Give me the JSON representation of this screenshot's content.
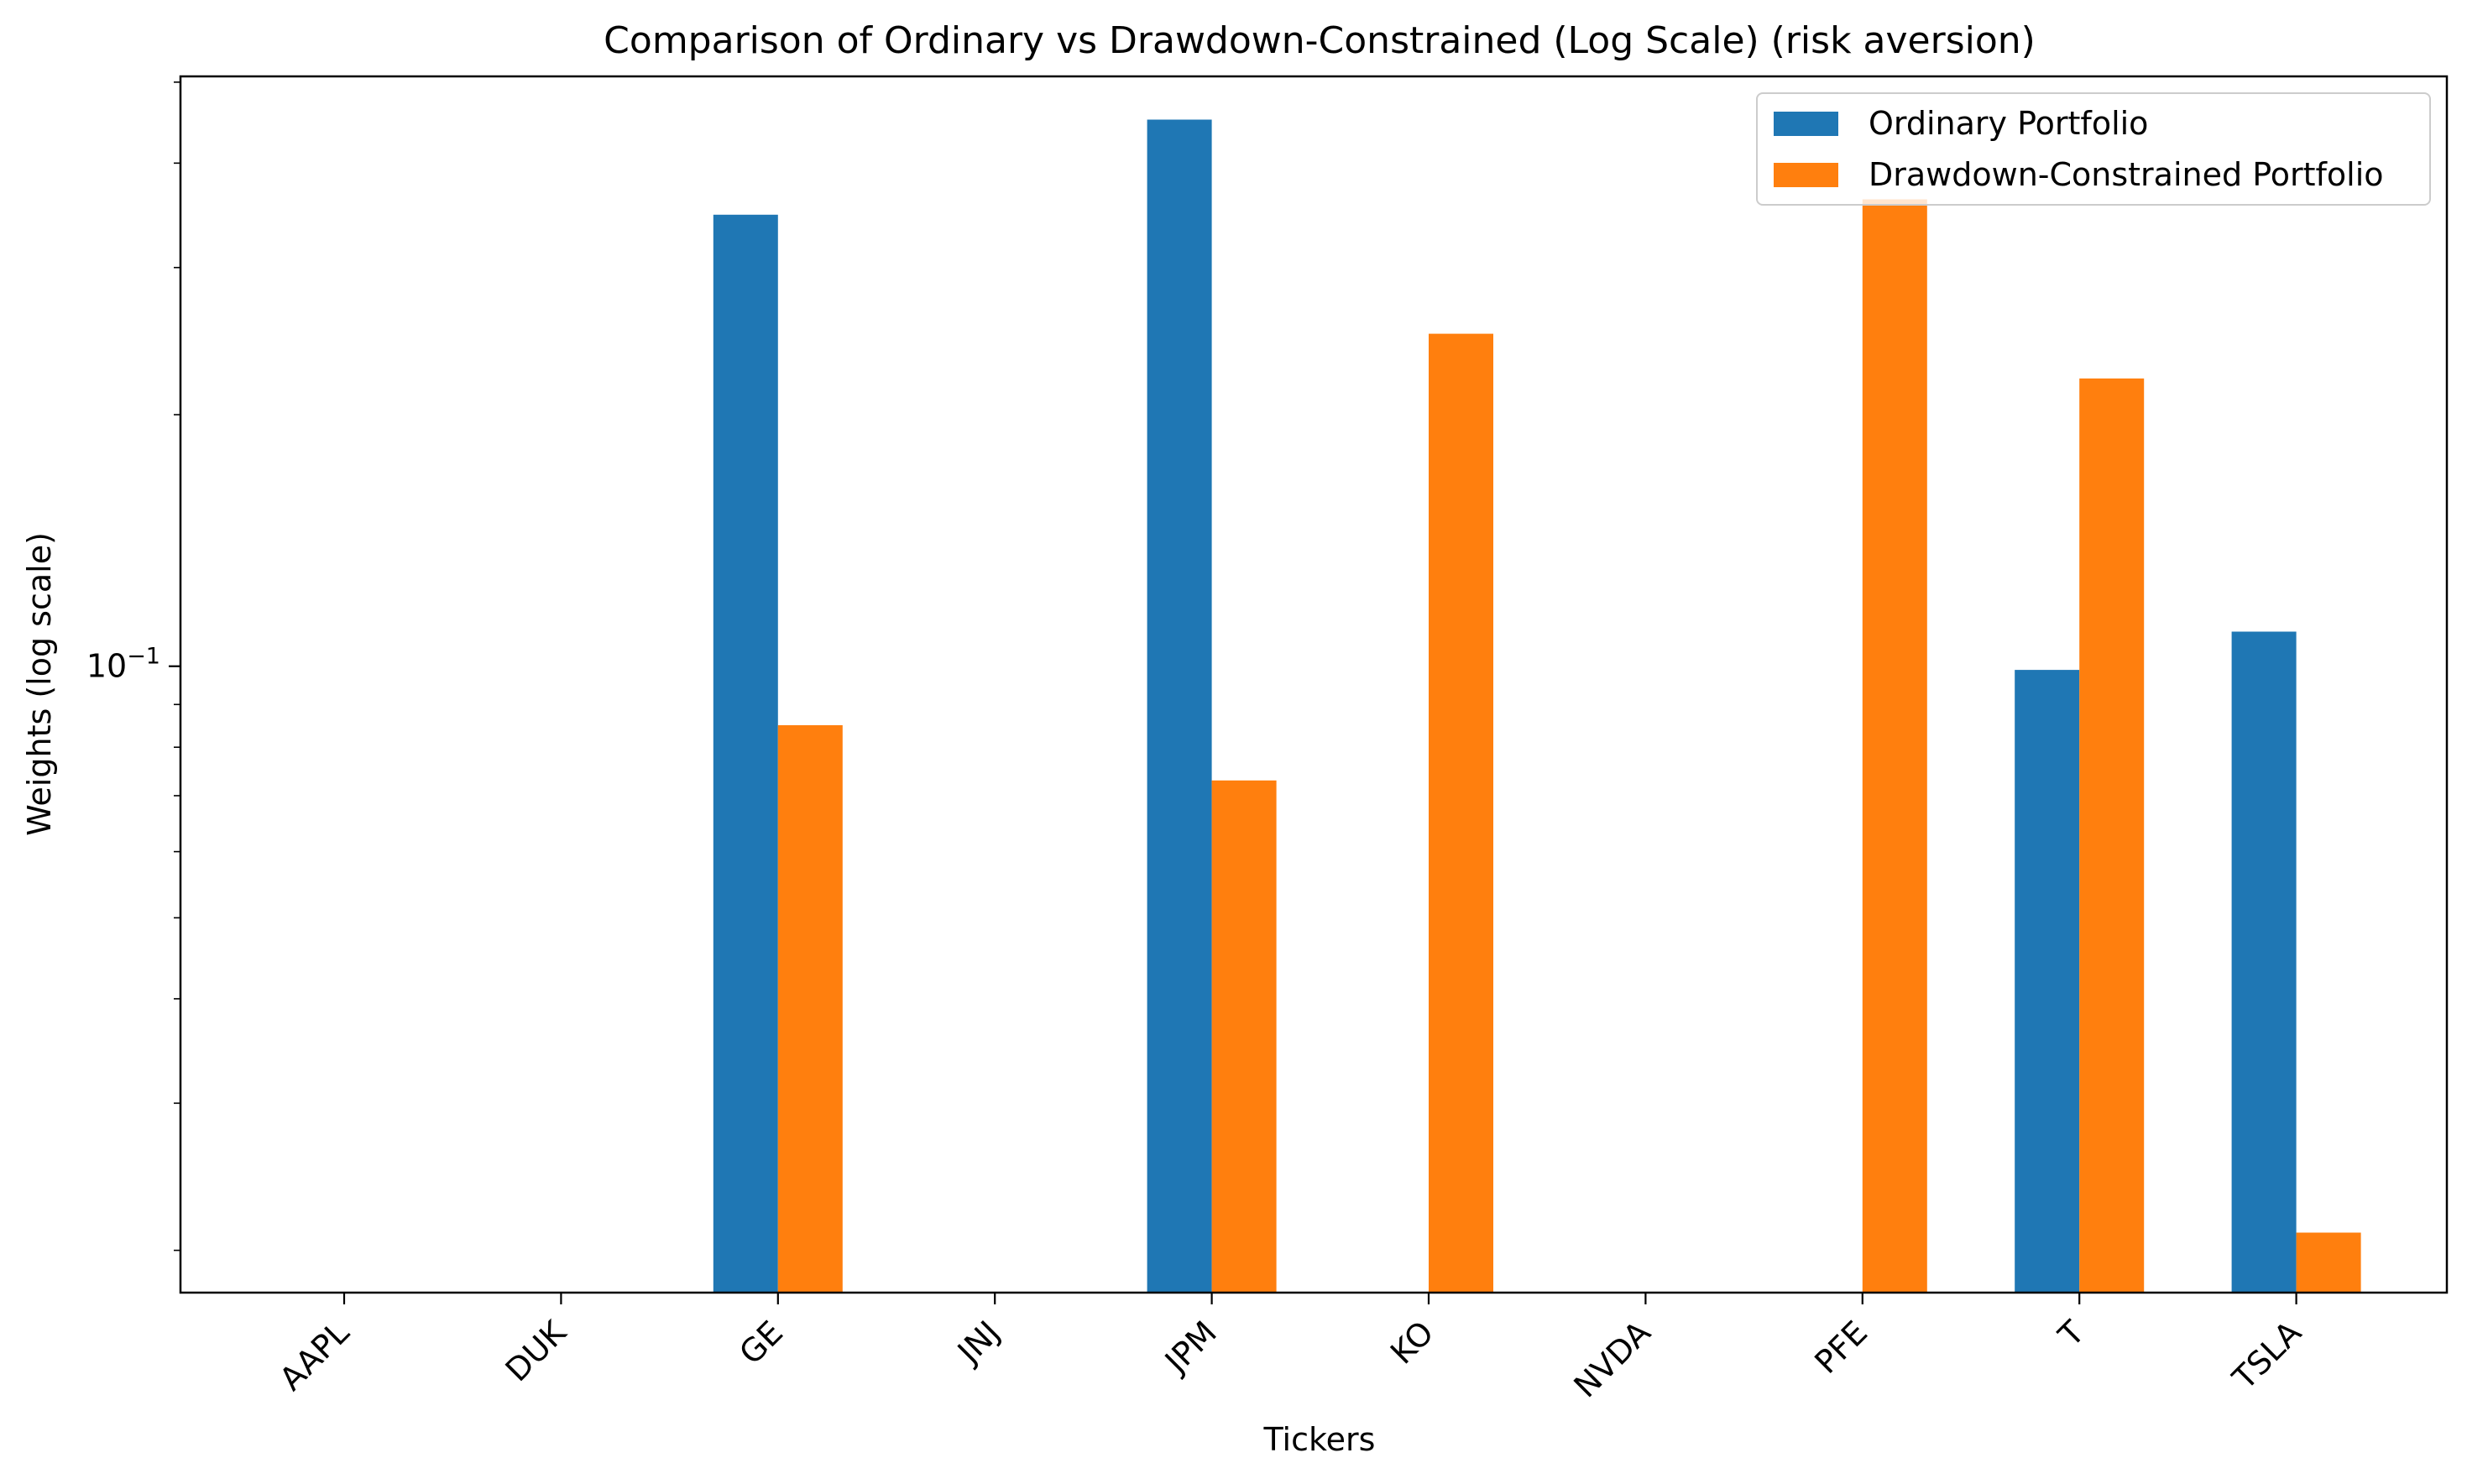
{
  "chart_data": {
    "type": "bar",
    "title": "Comparison of Ordinary vs Drawdown-Constrained (Log Scale) (risk aversion)",
    "xlabel": "Tickers",
    "ylabel": "Weights (log scale)",
    "yscale": "log",
    "ylim": [
      0.0178,
      0.508
    ],
    "ytick_labels": [
      {
        "value": 0.1,
        "base": "10",
        "exponent": "−1"
      }
    ],
    "categories": [
      "AAPL",
      "DUK",
      "GE",
      "JNJ",
      "JPM",
      "KO",
      "NVDA",
      "PFE",
      "T",
      "TSLA"
    ],
    "series": [
      {
        "name": "Ordinary Portfolio",
        "color": "#1f77b4",
        "values": [
          0,
          0,
          0.347,
          0,
          0.451,
          0,
          0,
          0,
          0.099,
          0.11
        ]
      },
      {
        "name": "Drawdown-Constrained Portfolio",
        "color": "#ff7f0e",
        "values": [
          0,
          0,
          0.085,
          0,
          0.073,
          0.25,
          0,
          0.362,
          0.221,
          0.021
        ]
      }
    ],
    "legend_position": "top-right",
    "grid": false
  }
}
